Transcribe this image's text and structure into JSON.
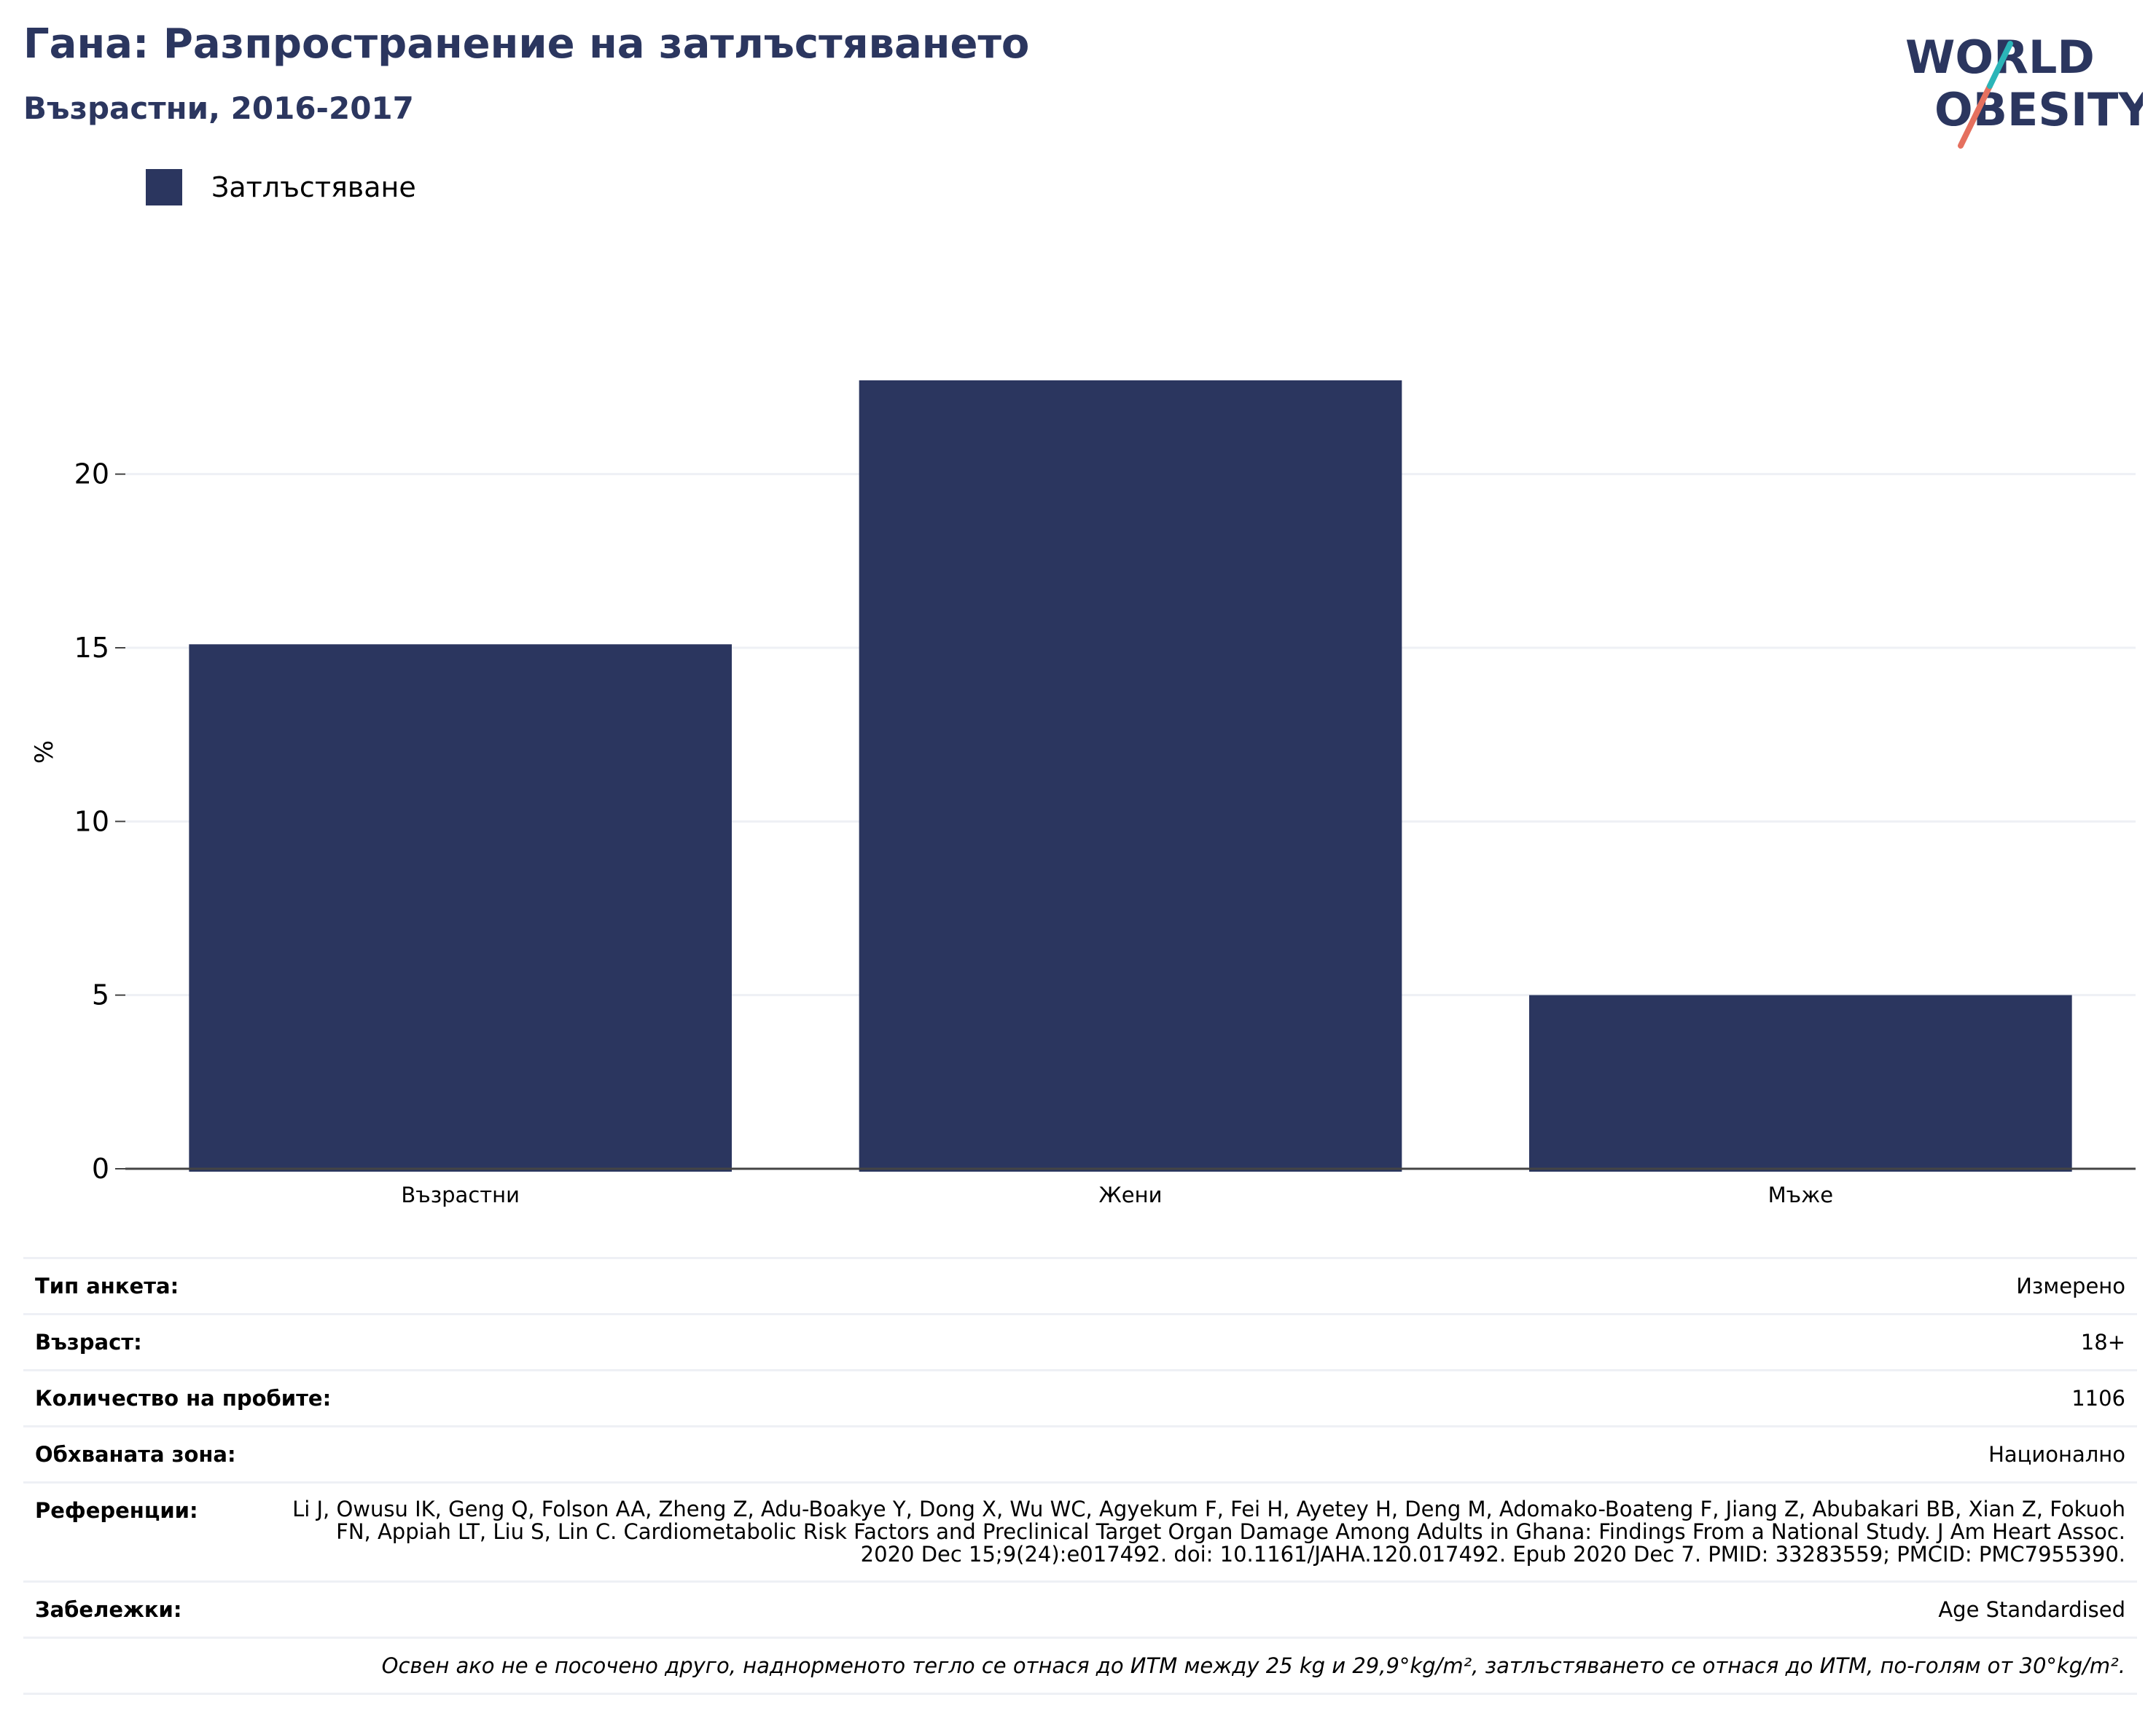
{
  "header": {
    "title": "Гана: Разпространение на затлъстяването",
    "subtitle": "Възрастни, 2016-2017"
  },
  "logo": {
    "line1": "WORLD",
    "line2": "OBESITY"
  },
  "colors": {
    "bar": "#2b365f",
    "grid": "#eef0f5",
    "axis": "#444444",
    "accent_teal": "#2bb5b8",
    "accent_red": "#e5705f"
  },
  "chart_data": {
    "type": "bar",
    "categories": [
      "Възрастни",
      "Жени",
      "Мъже"
    ],
    "series": [
      {
        "name": "Затлъстяване",
        "values": [
          15.1,
          22.7,
          5.0
        ]
      }
    ],
    "ylabel": "%",
    "xlabel": "",
    "ylim": [
      0,
      24
    ],
    "yticks": [
      0,
      5,
      10,
      15,
      20
    ],
    "grid": true,
    "legend": "top-left"
  },
  "info": {
    "rows": [
      {
        "label": "Тип анкета:",
        "value": "Измерено"
      },
      {
        "label": "Възраст:",
        "value": "18+"
      },
      {
        "label": "Количество на пробите:",
        "value": "1106"
      },
      {
        "label": "Обхваната зона:",
        "value": "Национално"
      },
      {
        "label": "Референции:",
        "value": "Li J, Owusu IK, Geng Q, Folson AA, Zheng Z, Adu-Boakye Y, Dong X, Wu WC, Agyekum F, Fei H, Ayetey H, Deng M, Adomako-Boateng F, Jiang Z, Abubakari BB, Xian Z, Fokuoh FN, Appiah LT, Liu S, Lin C. Cardiometabolic Risk Factors and Preclinical Target Organ Damage Among Adults in Ghana: Findings From a National Study. J Am Heart Assoc. 2020 Dec 15;9(24):e017492. doi: 10.1161/JAHA.120.017492. Epub 2020 Dec 7. PMID: 33283559; PMCID: PMC7955390."
      },
      {
        "label": "Забележки:",
        "value": "Age Standardised"
      }
    ],
    "footnote": "Освен ако не е посочено друго, наднорменото тегло се отнася до ИТМ между 25 kg и 29,9°kg/m², затлъстяването се отнася до ИТМ, по-голям от 30°kg/m²."
  }
}
